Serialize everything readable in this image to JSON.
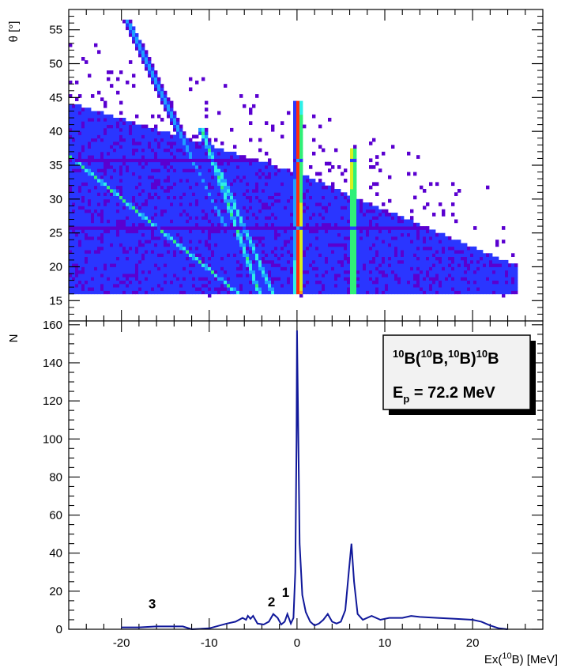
{
  "chart_data": [
    {
      "type": "heatmap",
      "title": "",
      "xlabel": "",
      "ylabel": "θ [°]",
      "xlim": [
        -26,
        28
      ],
      "ylim": [
        12,
        58
      ],
      "yticks": [
        "15",
        "20",
        "25",
        "30",
        "35",
        "40",
        "45",
        "50",
        "55"
      ],
      "colormap": [
        "#5a00d0",
        "#2a36ff",
        "#1ea0ff",
        "#2ef0e8",
        "#30f078",
        "#d8f020",
        "#ff9a10",
        "#ff2a10"
      ],
      "features": [
        {
          "name": "line1",
          "theta": [
            36,
            16
          ],
          "ex": [
            -26,
            -7
          ],
          "intensity": 0.55
        },
        {
          "name": "line2",
          "theta": [
            56,
            26
          ],
          "ex": [
            -19.5,
            -8.5
          ],
          "intensity": 0.35
        },
        {
          "name": "line3",
          "theta": [
            40,
            16
          ],
          "ex": [
            -11,
            -4.5
          ],
          "intensity": 0.5
        },
        {
          "name": "line4",
          "theta": [
            34,
            16
          ],
          "ex": [
            -9,
            -3
          ],
          "intensity": 0.45
        },
        {
          "name": "ground_state",
          "theta": [
            44,
            16
          ],
          "ex": [
            0,
            0
          ],
          "intensity": 1.0
        },
        {
          "name": "peak_6",
          "theta": [
            37,
            16
          ],
          "ex": [
            6.2,
            6.2
          ],
          "intensity": 0.85
        }
      ]
    },
    {
      "type": "line",
      "title": "",
      "xlabel": "Ex(10B) [MeV]",
      "xlabel_main": "Ex(",
      "xlabel_sup": "10",
      "xlabel_end": "B) [MeV]",
      "ylabel": "N",
      "xlim": [
        -26,
        28
      ],
      "ylim": [
        0,
        162
      ],
      "xticks": [
        "-20",
        "-10",
        "0",
        "10",
        "20"
      ],
      "yticks": [
        "0",
        "20",
        "40",
        "60",
        "80",
        "100",
        "120",
        "140",
        "160"
      ],
      "series": [
        {
          "color": "#10189a",
          "x": [
            -20,
            -18,
            -16,
            -14.5,
            -13,
            -12,
            -10,
            -8,
            -7,
            -6.2,
            -5.8,
            -5.6,
            -5.3,
            -5.0,
            -4.5,
            -3.8,
            -3.2,
            -2.7,
            -2.2,
            -1.8,
            -1.4,
            -1.1,
            -0.7,
            -0.4,
            -0.2,
            -0.05,
            0.0,
            0.1,
            0.3,
            0.6,
            1.0,
            1.5,
            2.0,
            2.5,
            3.0,
            3.5,
            4.0,
            4.5,
            5.0,
            5.5,
            5.9,
            6.2,
            6.5,
            6.9,
            7.5,
            8.5,
            9.5,
            10.5,
            12,
            13,
            14,
            16,
            18,
            20,
            21,
            22,
            23,
            24
          ],
          "y": [
            1,
            1,
            1.5,
            1.5,
            1.5,
            0,
            0.5,
            3,
            4,
            6,
            5,
            7,
            5.5,
            7,
            3,
            2.5,
            4,
            8,
            6,
            2.5,
            4,
            8,
            3,
            6,
            30,
            100,
            157,
            120,
            45,
            18,
            9,
            4,
            2,
            3,
            5,
            8,
            4,
            3,
            4,
            10,
            30,
            45,
            25,
            8,
            5,
            7,
            5,
            6,
            6,
            7,
            6.5,
            6,
            5.5,
            5,
            4,
            2,
            0.5,
            0
          ]
        }
      ],
      "annotations": [
        {
          "text": "1",
          "x": -1.3,
          "y": 17
        },
        {
          "text": "2",
          "x": -2.9,
          "y": 12
        },
        {
          "text": "3",
          "x": -16.5,
          "y": 11
        }
      ],
      "legend": {
        "line1_sup_a": "10",
        "line1_a": "B(",
        "line1_sup_b": "10",
        "line1_b": "B,",
        "line1_sup_c": "10",
        "line1_c": "B)",
        "line1_sup_d": "10",
        "line1_d": "B",
        "line2_main": "E",
        "line2_sub": "p",
        "line2_rest": " = 72.2 MeV",
        "placement": "top-right"
      }
    }
  ]
}
